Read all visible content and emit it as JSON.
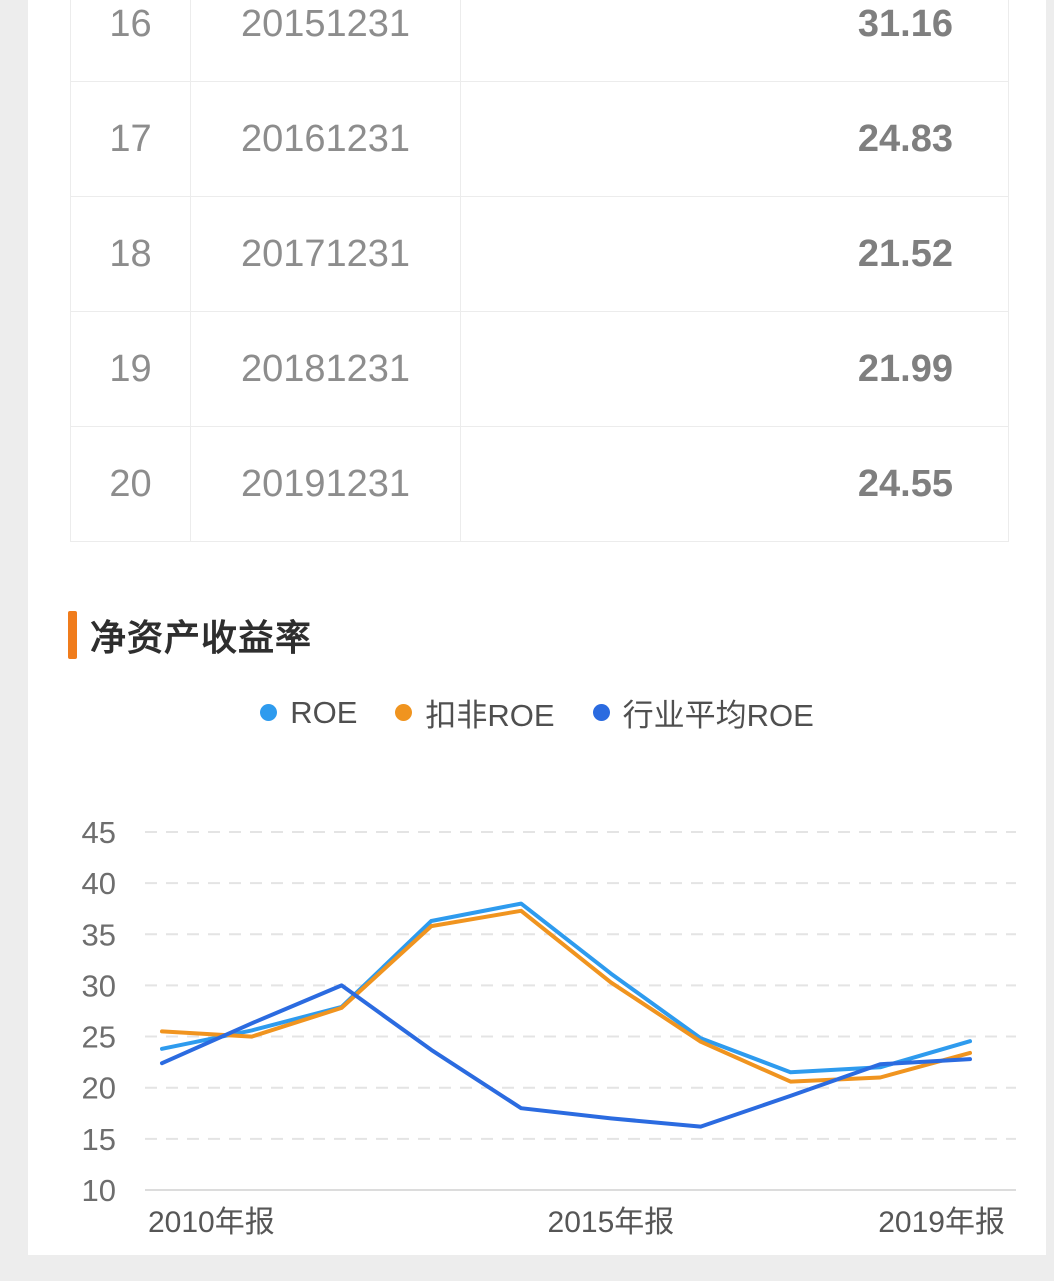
{
  "table": {
    "columns": [
      "row_index",
      "report_date",
      "value"
    ],
    "rows": [
      {
        "index": "16",
        "date": "20151231",
        "value": "31.16"
      },
      {
        "index": "17",
        "date": "20161231",
        "value": "24.83"
      },
      {
        "index": "18",
        "date": "20171231",
        "value": "21.52"
      },
      {
        "index": "19",
        "date": "20181231",
        "value": "21.99"
      },
      {
        "index": "20",
        "date": "20191231",
        "value": "24.55"
      }
    ]
  },
  "section": {
    "title": "净资产收益率",
    "accent_color": "#f07c1c"
  },
  "chart_data": {
    "type": "line",
    "title": "净资产收益率",
    "x": [
      2010,
      2011,
      2012,
      2013,
      2014,
      2015,
      2016,
      2017,
      2018,
      2019
    ],
    "x_tick_labels": [
      "2010年报",
      "2015年报",
      "2019年报"
    ],
    "y_ticks": [
      10,
      15,
      20,
      25,
      30,
      35,
      40,
      45
    ],
    "ylim": [
      10,
      45
    ],
    "grid": "horizontal-dashed",
    "legend_position": "top-center",
    "series": [
      {
        "name": "ROE",
        "color": "#2e9bee",
        "values": [
          23.8,
          25.6,
          27.9,
          36.3,
          38.0,
          31.16,
          24.83,
          21.52,
          21.99,
          24.55
        ]
      },
      {
        "name": "扣非ROE",
        "color": "#f0941f",
        "values": [
          25.5,
          25.0,
          27.8,
          35.8,
          37.3,
          30.3,
          24.5,
          20.6,
          21.0,
          23.4
        ]
      },
      {
        "name": "行业平均ROE",
        "color": "#2b6be0",
        "values": [
          22.4,
          26.3,
          30.0,
          23.7,
          18.0,
          17.0,
          16.2,
          19.2,
          22.3,
          22.8
        ]
      }
    ]
  },
  "colors": {
    "page_bg": "#ededed",
    "card_bg": "#ffffff",
    "table_border": "#ececec",
    "grid_line": "#e4e4e4",
    "axis_line": "#dcdcdc"
  }
}
